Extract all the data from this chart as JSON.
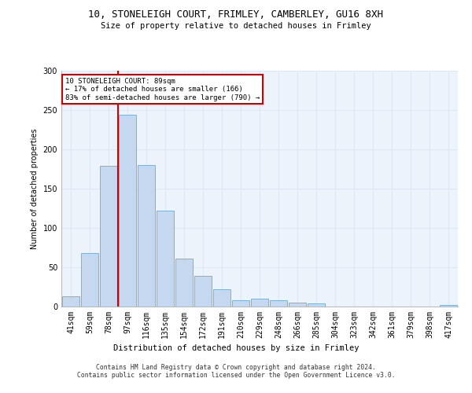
{
  "title1": "10, STONELEIGH COURT, FRIMLEY, CAMBERLEY, GU16 8XH",
  "title2": "Size of property relative to detached houses in Frimley",
  "xlabel": "Distribution of detached houses by size in Frimley",
  "ylabel": "Number of detached properties",
  "categories": [
    "41sqm",
    "59sqm",
    "78sqm",
    "97sqm",
    "116sqm",
    "135sqm",
    "154sqm",
    "172sqm",
    "191sqm",
    "210sqm",
    "229sqm",
    "248sqm",
    "266sqm",
    "285sqm",
    "304sqm",
    "323sqm",
    "342sqm",
    "361sqm",
    "379sqm",
    "398sqm",
    "417sqm"
  ],
  "values": [
    13,
    68,
    179,
    244,
    180,
    122,
    61,
    39,
    22,
    8,
    10,
    8,
    5,
    4,
    0,
    0,
    0,
    0,
    0,
    0,
    2
  ],
  "bar_color": "#c5d8f0",
  "bar_edge_color": "#6aaad4",
  "vline_color": "#cc0000",
  "annotation_text": "10 STONELEIGH COURT: 89sqm\n← 17% of detached houses are smaller (166)\n83% of semi-detached houses are larger (790) →",
  "annotation_box_color": "#ffffff",
  "annotation_box_edge": "#cc0000",
  "grid_color": "#dce8f5",
  "background_color": "#edf3fb",
  "footer": "Contains HM Land Registry data © Crown copyright and database right 2024.\nContains public sector information licensed under the Open Government Licence v3.0.",
  "ylim": [
    0,
    300
  ]
}
